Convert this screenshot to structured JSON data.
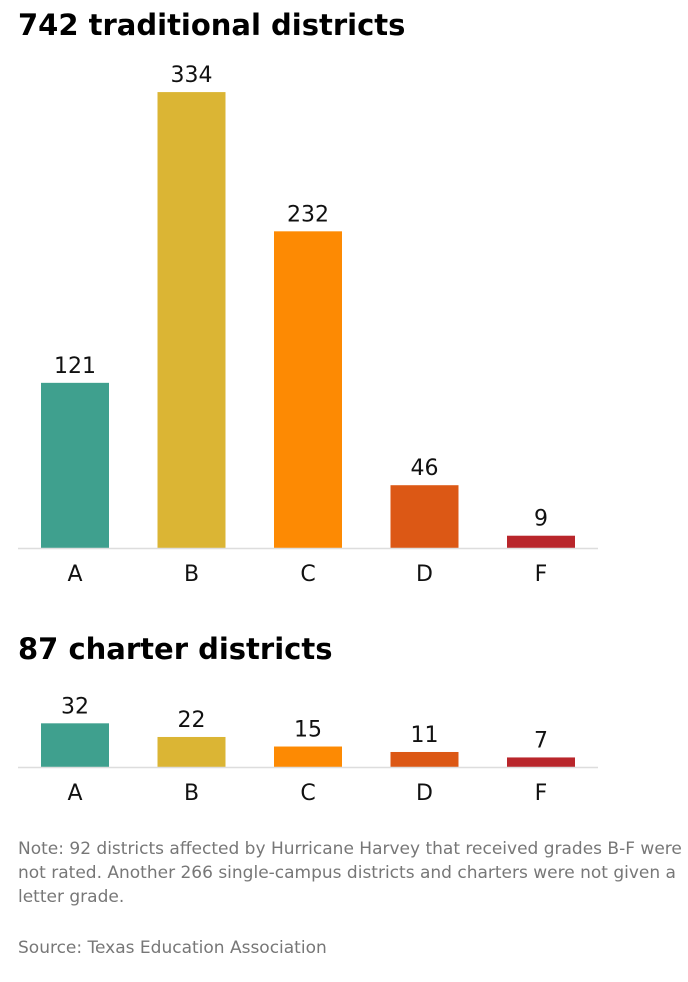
{
  "chart_data": [
    {
      "type": "bar",
      "title": "742 traditional districts",
      "categories": [
        "A",
        "B",
        "C",
        "D",
        "F"
      ],
      "values": [
        121,
        334,
        232,
        46,
        9
      ],
      "colors": [
        "#3fa08e",
        "#dbb534",
        "#fd8a03",
        "#dc5815",
        "#b9262b"
      ]
    },
    {
      "type": "bar",
      "title": "87 charter districts",
      "categories": [
        "A",
        "B",
        "C",
        "D",
        "F"
      ],
      "values": [
        32,
        22,
        15,
        11,
        7
      ],
      "colors": [
        "#3fa08e",
        "#dbb534",
        "#fd8a03",
        "#dc5815",
        "#b9262b"
      ]
    }
  ],
  "note": "Note: 92 districts affected by Hurricane Harvey that received grades B-F were not rated. Another 266 single-campus districts and charters were not given a letter grade.",
  "source": "Source: Texas Education Association"
}
